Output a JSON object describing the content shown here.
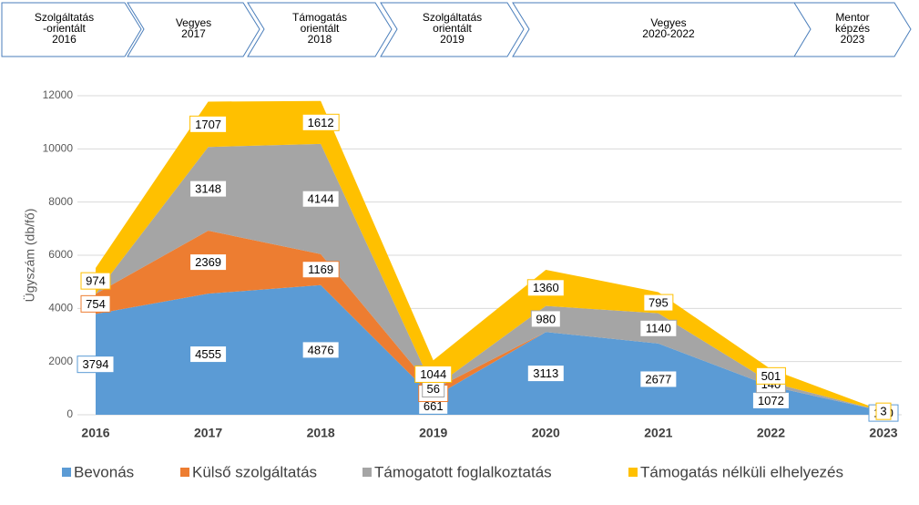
{
  "phases": [
    {
      "lines": [
        "Szolgáltatás",
        "-orientált",
        "2016"
      ]
    },
    {
      "lines": [
        "Vegyes",
        "2017"
      ]
    },
    {
      "lines": [
        "Támogatás",
        "orientált",
        "2018"
      ]
    },
    {
      "lines": [
        "Szolgáltatás",
        "orientált",
        "2019"
      ]
    },
    {
      "lines": [
        "Vegyes",
        "2020-2022"
      ]
    },
    {
      "lines": [
        "Mentor",
        "képzés",
        "2023"
      ]
    }
  ],
  "chart_data": {
    "type": "stacked_area",
    "ylabel": "Ügyszám (db/fő)",
    "categories": [
      "2016",
      "2017",
      "2018",
      "2019",
      "2020",
      "2021",
      "2022",
      "2023"
    ],
    "series": [
      {
        "name": "Bevonás",
        "color": "#5b9bd5",
        "values": [
          3794,
          4555,
          4876,
          661,
          3113,
          2677,
          1072,
          130
        ]
      },
      {
        "name": "Külső szolgáltatás",
        "color": "#ed7d31",
        "values": [
          754,
          2369,
          1169,
          288,
          0,
          0,
          0,
          0
        ]
      },
      {
        "name": "Támogatott foglalkoztatás",
        "color": "#a5a5a5",
        "values": [
          0,
          3148,
          4144,
          56,
          980,
          1140,
          140,
          0
        ]
      },
      {
        "name": "Támogatás nélküli elhelyezés",
        "color": "#ffc000",
        "values": [
          974,
          1707,
          1612,
          1044,
          1360,
          795,
          501,
          3
        ]
      }
    ],
    "ylim": [
      0,
      12000
    ],
    "yticks": [
      0,
      2000,
      4000,
      6000,
      8000,
      10000,
      12000
    ],
    "grid": true,
    "legend": "bottom"
  }
}
